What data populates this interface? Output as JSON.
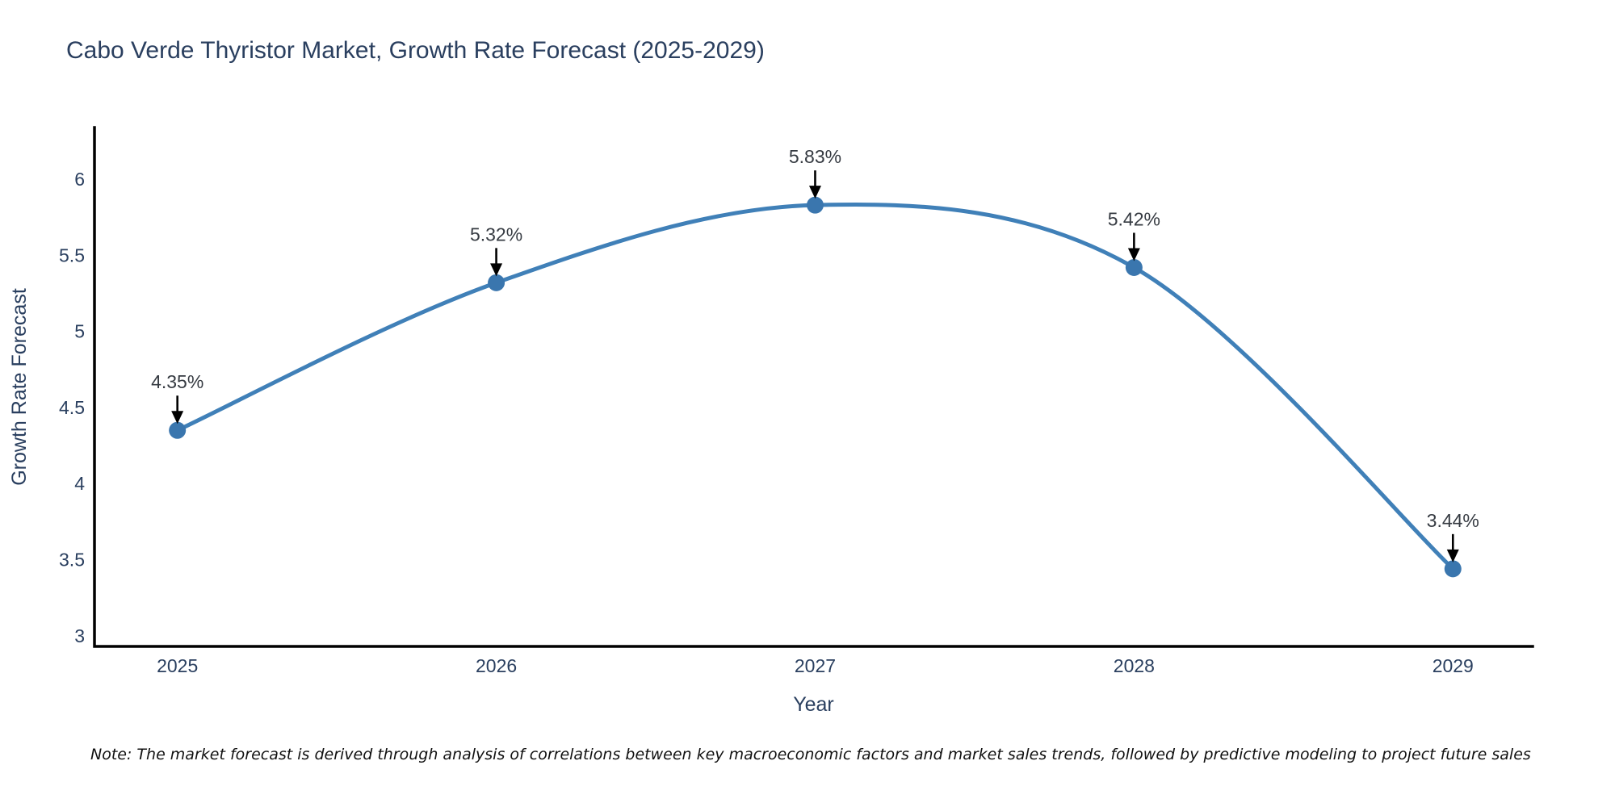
{
  "page": {
    "note": "Note: The market forecast is derived through analysis of correlations between key macroeconomic factors and market sales trends, followed by predictive modeling to project future sales"
  },
  "chart_data": {
    "type": "line",
    "title": "Cabo Verde Thyristor Market, Growth Rate Forecast (2025-2029)",
    "xlabel": "Year",
    "ylabel": "Growth Rate Forecast",
    "x": [
      2025,
      2026,
      2027,
      2028,
      2029
    ],
    "series": [
      {
        "name": "Growth Rate Forecast",
        "values": [
          4.35,
          5.32,
          5.83,
          5.42,
          3.44
        ]
      }
    ],
    "point_labels": [
      "4.35%",
      "5.32%",
      "5.83%",
      "5.42%",
      "3.44%"
    ],
    "yticks": [
      3,
      3.5,
      4,
      4.5,
      5,
      5.5,
      6
    ],
    "xlim": [
      2024.74,
      2029.25
    ],
    "ylim": [
      2.93,
      6.34
    ],
    "grid": false,
    "legend_position": "none",
    "line_shape": "spline",
    "annotation_arrows": true,
    "colors": {
      "line": "#4080b8",
      "marker": "#3a76ae",
      "axis": "#000000",
      "tick_text": "#2a3f5f",
      "annotation_text": "#363b42",
      "arrow": "#000000"
    }
  }
}
